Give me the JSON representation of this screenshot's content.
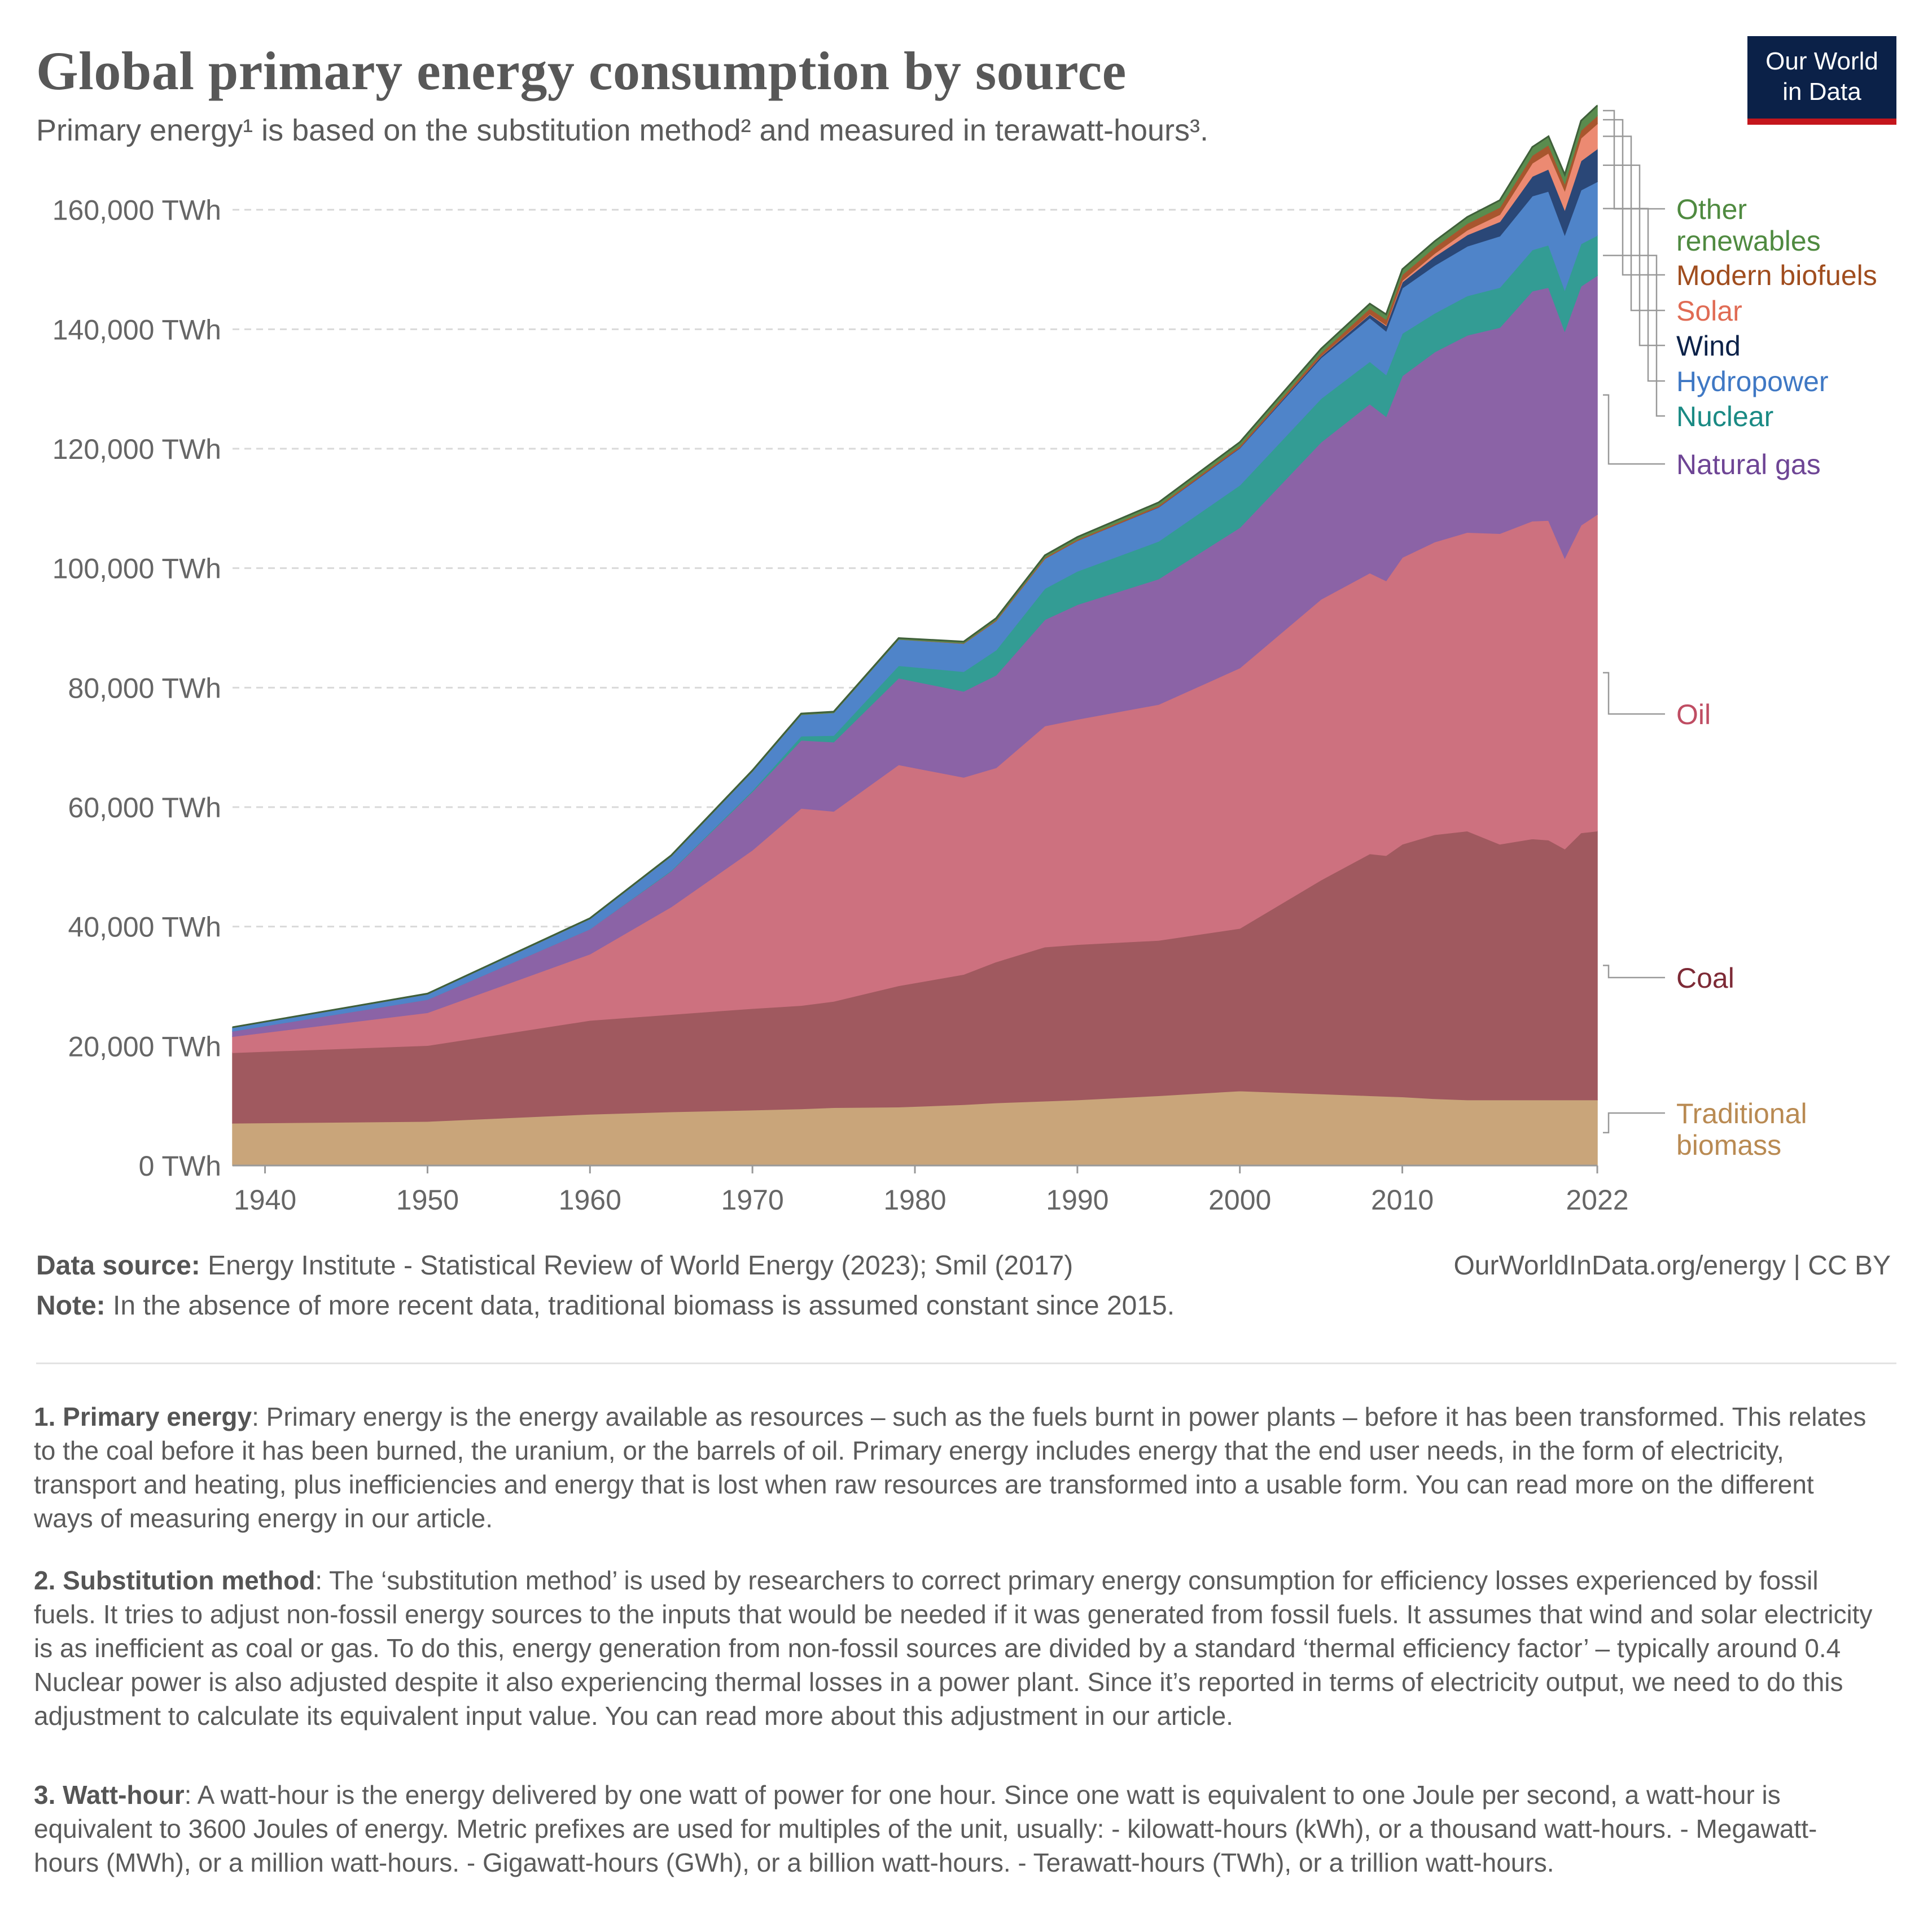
{
  "header": {
    "title": "Global primary energy consumption by source",
    "subtitle": "Primary energy¹ is based on the substitution method² and measured in terawatt-hours³."
  },
  "logo": {
    "line1": "Our World",
    "line2": "in Data"
  },
  "colors": {
    "Traditional biomass": "#c9a57a",
    "Coal": "#a0595f",
    "Oil": "#cd717f",
    "Natural gas": "#8b63a6",
    "Nuclear": "#339c94",
    "Hydropower": "#4f84c9",
    "Wind": "#2a4777",
    "Solar": "#ec8a72",
    "Modern biofuels": "#a8562e",
    "Other renewables": "#5a8c4e"
  },
  "chart_data": {
    "type": "area",
    "stacked": true,
    "ylim": [
      0,
      180000
    ],
    "xlim": [
      1938,
      2022
    ],
    "y_ticks": [
      0,
      20000,
      40000,
      60000,
      80000,
      100000,
      120000,
      140000,
      160000
    ],
    "y_tick_labels": [
      "0 TWh",
      "20,000 TWh",
      "40,000 TWh",
      "60,000 TWh",
      "80,000 TWh",
      "100,000 TWh",
      "120,000 TWh",
      "140,000 TWh",
      "160,000 TWh"
    ],
    "x_tick_labels": [
      "1940",
      "1950",
      "1960",
      "1970",
      "1980",
      "1990",
      "2000",
      "2010",
      "2022"
    ],
    "grid": "horizontal-dashed",
    "legend": "right-labels",
    "x": [
      1938,
      1950,
      1960,
      1965,
      1970,
      1973,
      1975,
      1979,
      1983,
      1985,
      1988,
      1990,
      1995,
      2000,
      2005,
      2008,
      2009,
      2010,
      2012,
      2014,
      2016,
      2018,
      2019,
      2020,
      2021,
      2022
    ],
    "series": [
      {
        "name": "Traditional biomass",
        "values": [
          7100,
          7400,
          8600,
          9000,
          9300,
          9500,
          9700,
          9800,
          10200,
          10500,
          10800,
          11000,
          11700,
          12500,
          12000,
          11700,
          11600,
          11500,
          11200,
          11000,
          11000,
          11000,
          11000,
          11000,
          11000,
          11000
        ]
      },
      {
        "name": "Coal",
        "values": [
          11800,
          12700,
          15700,
          16300,
          17000,
          17300,
          17800,
          20300,
          21800,
          23600,
          25800,
          26000,
          26000,
          27200,
          35800,
          40500,
          40300,
          42300,
          44200,
          45000,
          42800,
          43700,
          43500,
          42000,
          44700,
          45000
        ]
      },
      {
        "name": "Oil",
        "values": [
          2700,
          5500,
          11100,
          18000,
          26500,
          33000,
          31800,
          37000,
          33000,
          32500,
          37000,
          37700,
          39500,
          43600,
          47000,
          47000,
          46000,
          48000,
          49000,
          50000,
          52000,
          53200,
          53500,
          48700,
          51500,
          53000
        ]
      },
      {
        "name": "Natural gas",
        "values": [
          900,
          2200,
          4200,
          6000,
          9800,
          11400,
          11600,
          14500,
          14400,
          15500,
          17800,
          19200,
          21000,
          23500,
          26300,
          28300,
          27500,
          30400,
          31800,
          33000,
          34500,
          38500,
          39000,
          38000,
          40000,
          40000
        ]
      },
      {
        "name": "Nuclear",
        "values": [
          0,
          0,
          0,
          100,
          200,
          700,
          1100,
          2100,
          3300,
          4200,
          5200,
          5600,
          6300,
          7100,
          7300,
          7100,
          7000,
          7100,
          6500,
          6600,
          6700,
          6900,
          7100,
          6900,
          7100,
          6700
        ]
      },
      {
        "name": "Hydropower",
        "values": [
          600,
          900,
          1700,
          2400,
          3200,
          3600,
          3800,
          4400,
          4700,
          4900,
          5000,
          5100,
          5700,
          6200,
          6800,
          7300,
          7300,
          7600,
          8000,
          8300,
          8600,
          9000,
          9000,
          9200,
          9000,
          9000
        ]
      },
      {
        "name": "Wind",
        "values": [
          0,
          0,
          0,
          0,
          0,
          0,
          0,
          0,
          0,
          0,
          10,
          20,
          60,
          100,
          300,
          600,
          900,
          1000,
          1500,
          1900,
          2400,
          3300,
          3700,
          4200,
          4900,
          5500
        ]
      },
      {
        "name": "Solar",
        "values": [
          0,
          0,
          0,
          0,
          0,
          0,
          0,
          0,
          0,
          0,
          0,
          0,
          0,
          10,
          30,
          80,
          150,
          250,
          500,
          800,
          1200,
          2200,
          2700,
          3200,
          3800,
          4200
        ]
      },
      {
        "name": "Modern biofuels",
        "values": [
          0,
          0,
          0,
          0,
          0,
          0,
          0,
          0,
          80,
          150,
          200,
          200,
          250,
          300,
          500,
          900,
          900,
          1000,
          1050,
          1100,
          1200,
          1300,
          1350,
          1200,
          1300,
          1350
        ]
      },
      {
        "name": "Other renewables",
        "values": [
          50,
          80,
          100,
          130,
          160,
          170,
          180,
          200,
          230,
          280,
          350,
          400,
          500,
          600,
          700,
          800,
          850,
          900,
          1000,
          1100,
          1200,
          1400,
          1450,
          1500,
          1600,
          1700
        ]
      }
    ],
    "legend_labels": [
      {
        "name": "Other renewables",
        "lines": [
          "Other",
          "renewables"
        ]
      },
      {
        "name": "Modern biofuels",
        "lines": [
          "Modern biofuels"
        ]
      },
      {
        "name": "Solar",
        "lines": [
          "Solar"
        ]
      },
      {
        "name": "Wind",
        "lines": [
          "Wind"
        ]
      },
      {
        "name": "Hydropower",
        "lines": [
          "Hydropower"
        ]
      },
      {
        "name": "Nuclear",
        "lines": [
          "Nuclear"
        ]
      },
      {
        "name": "Natural gas",
        "lines": [
          "Natural gas"
        ]
      },
      {
        "name": "Oil",
        "lines": [
          "Oil"
        ]
      },
      {
        "name": "Coal",
        "lines": [
          "Coal"
        ]
      },
      {
        "name": "Traditional biomass",
        "lines": [
          "Traditional",
          "biomass"
        ]
      }
    ]
  },
  "footer": {
    "source_label": "Data source:",
    "source_text": " Energy Institute - Statistical Review of World Energy (2023); Smil (2017)",
    "credit": "OurWorldInData.org/energy | CC BY",
    "note_label": "Note:",
    "note_text": " In the absence of more recent data, traditional biomass is assumed constant since 2015."
  },
  "footnotes": [
    {
      "label": "1. Primary energy",
      "text": ": Primary energy is the energy available as resources – such as the fuels burnt in power plants – before it has been transformed. This relates to the coal before it has been burned, the uranium, or the barrels of oil. Primary energy includes energy that the end user needs, in the form of electricity, transport and heating, plus inefficiencies and energy that is lost when raw resources are transformed into a usable form. You can read more on the different ways of measuring energy in our article."
    },
    {
      "label": "2. Substitution method",
      "text": ": The ‘substitution method’ is used by researchers to correct primary energy consumption for efficiency losses experienced by fossil fuels. It tries to adjust non-fossil energy sources to the inputs that would be needed if it was generated from fossil fuels. It assumes that wind and solar electricity is as inefficient as coal or gas. To do this, energy generation from non-fossil sources are divided by a standard ‘thermal efficiency factor’ – typically around 0.4 Nuclear power is also adjusted despite it also experiencing thermal losses in a power plant. Since it’s reported in terms of electricity output, we need to do this adjustment to calculate its equivalent input value. You can read more about this adjustment in our article."
    },
    {
      "label": "3. Watt-hour",
      "text": ": A watt-hour is the energy delivered by one watt of power for one hour. Since one watt is equivalent to one Joule per second, a watt-hour is equivalent to 3600 Joules of energy. Metric prefixes are used for multiples of the unit, usually: - kilowatt-hours (kWh), or a thousand watt-hours. - Megawatt-hours (MWh), or a million watt-hours. - Gigawatt-hours (GWh), or a billion watt-hours. - Terawatt-hours (TWh), or a trillion watt-hours."
    }
  ]
}
